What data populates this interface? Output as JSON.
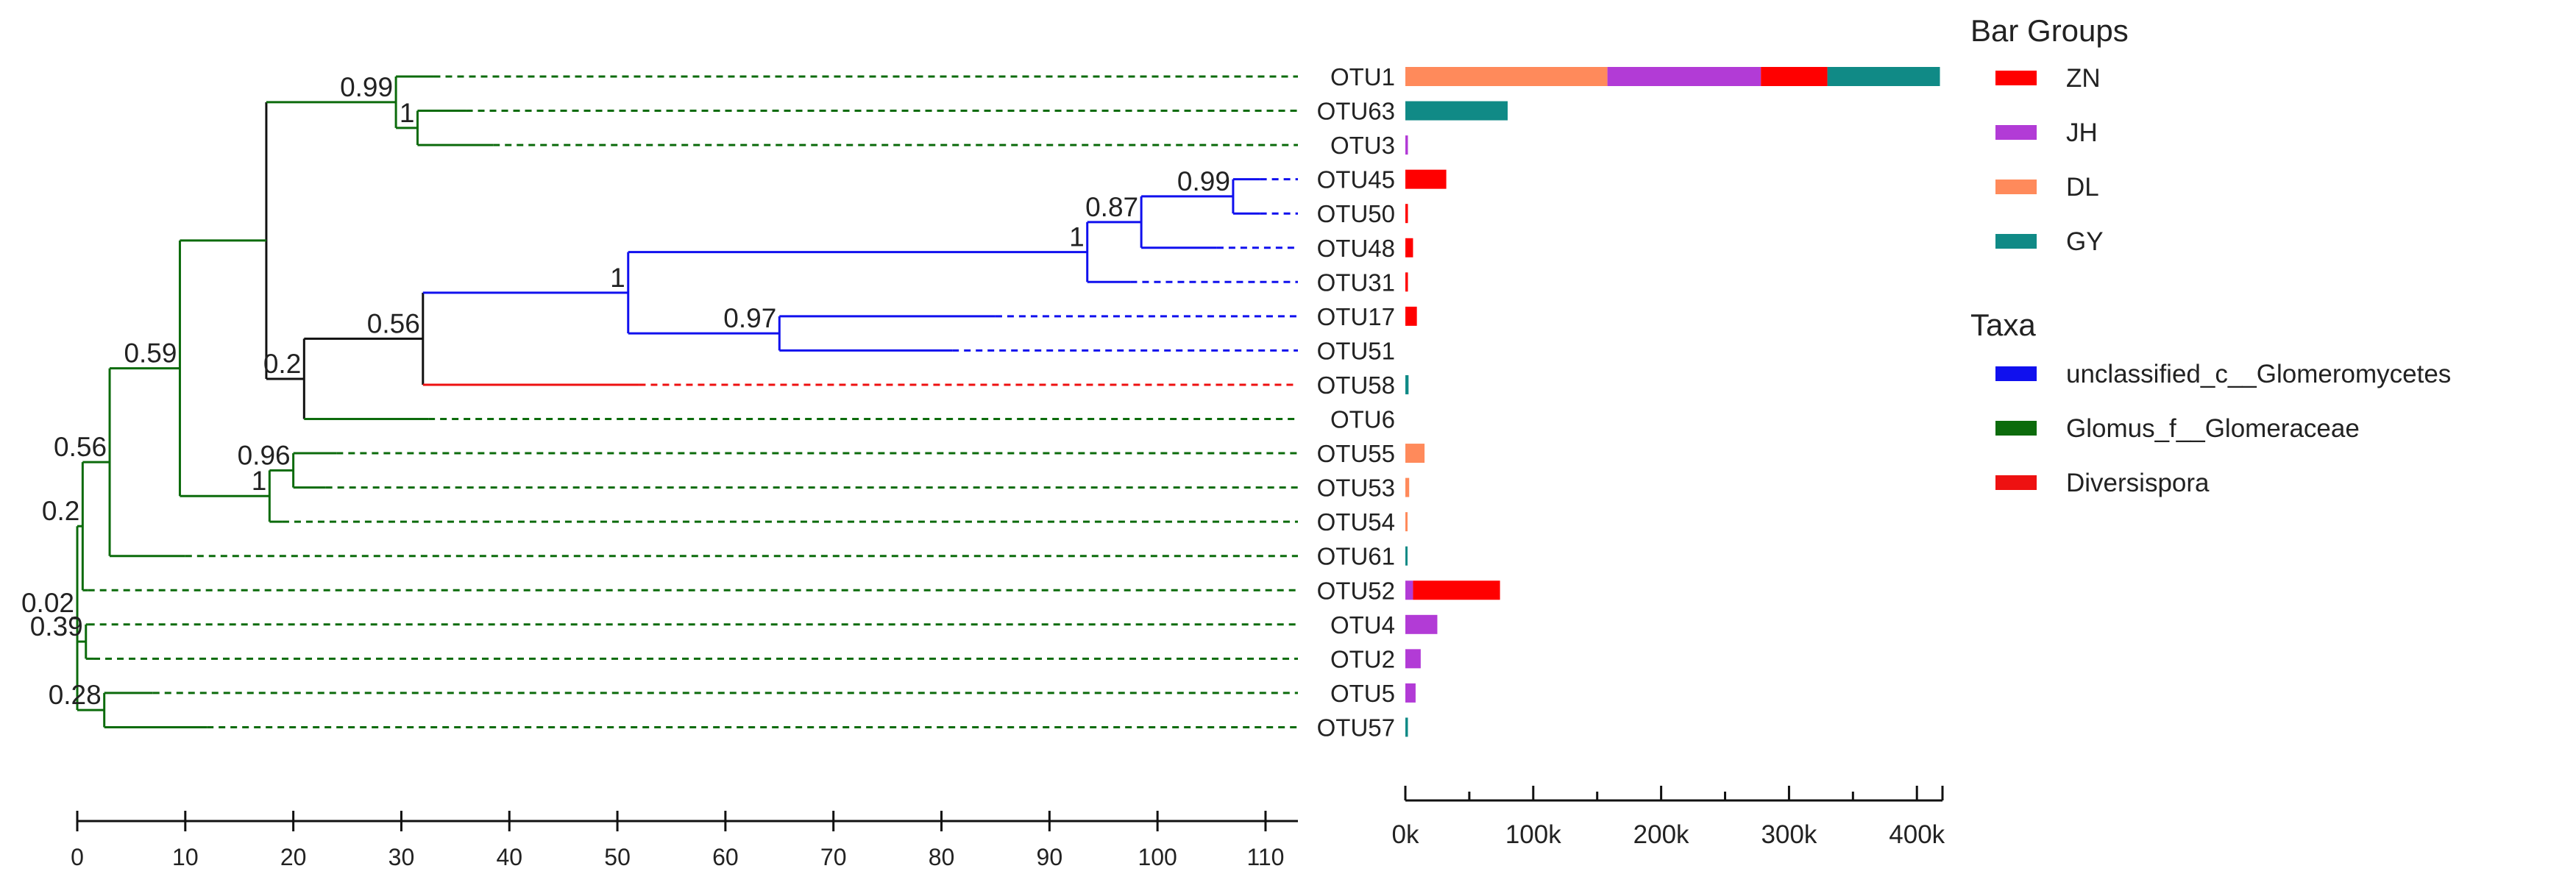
{
  "chart_data": {
    "type": "bar",
    "categories": [
      "OTU1",
      "OTU63",
      "OTU3",
      "OTU45",
      "OTU50",
      "OTU48",
      "OTU31",
      "OTU17",
      "OTU51",
      "OTU58",
      "OTU6",
      "OTU55",
      "OTU53",
      "OTU54",
      "OTU61",
      "OTU52",
      "OTU4",
      "OTU2",
      "OTU5",
      "OTU57"
    ],
    "series": [
      {
        "name": "ZN",
        "color": "#ff0000",
        "values": [
          52000,
          0,
          0,
          32000,
          2000,
          6000,
          2000,
          9000,
          0,
          0,
          0,
          0,
          0,
          0,
          0,
          68000,
          0,
          0,
          0,
          0
        ]
      },
      {
        "name": "JH",
        "color": "#b23bd6",
        "values": [
          120000,
          0,
          2000,
          0,
          0,
          0,
          0,
          0,
          0,
          0,
          0,
          0,
          0,
          0,
          0,
          6000,
          25000,
          12000,
          8000,
          0
        ]
      },
      {
        "name": "DL",
        "color": "#ff8a5b",
        "values": [
          158000,
          0,
          0,
          0,
          0,
          0,
          0,
          0,
          0,
          0,
          0,
          15000,
          3000,
          1500,
          0,
          0,
          0,
          0,
          0,
          0
        ]
      },
      {
        "name": "GY",
        "color": "#108a86",
        "values": [
          88000,
          80000,
          0,
          0,
          0,
          0,
          0,
          0,
          0,
          2500,
          0,
          0,
          0,
          0,
          1500,
          0,
          0,
          0,
          0,
          2000
        ]
      }
    ],
    "stack_order": [
      "DL",
      "JH",
      "ZN",
      "GY"
    ],
    "bar_axis": {
      "range": [
        0,
        420000
      ],
      "ticks": [
        "0k",
        "100k",
        "200k",
        "300k",
        "400k"
      ],
      "tick_values": [
        0,
        100000,
        200000,
        300000,
        400000
      ]
    },
    "tree": {
      "type": "phylogenetic-tree",
      "axis": {
        "range": [
          0,
          113
        ],
        "ticks": [
          "0",
          "10",
          "20",
          "30",
          "40",
          "50",
          "60",
          "70",
          "80",
          "90",
          "100",
          "110"
        ],
        "tick_values": [
          0,
          10,
          20,
          30,
          40,
          50,
          60,
          70,
          80,
          90,
          100,
          110
        ]
      },
      "node_heights": {
        "N_root": 0,
        "N_u1": 0.5,
        "N_sub2": 3,
        "N_top": 9.5,
        "N_a": 17.5,
        "N_b": 21,
        "N_c": 32,
        "N_d": 51,
        "N_e": 93.5,
        "N_f": 98.5,
        "N_g": 107,
        "N_h": 65,
        "N_i": 29.5,
        "N_j": 31.5,
        "N_k": 17.8,
        "N_l": 20,
        "N_u2": 0.8,
        "N_u3": 2.5,
        "OTU1": 113,
        "OTU63": 113,
        "OTU3": 113,
        "OTU45": 113,
        "OTU50": 113,
        "OTU48": 113,
        "OTU31": 113,
        "OTU17": 113,
        "OTU51": 113,
        "OTU58": 113,
        "OTU6": 113,
        "OTU55": 113,
        "OTU53": 113,
        "OTU54": 113,
        "OTU61": 113,
        "OTU52": 113,
        "OTU4": 113,
        "OTU2": 113,
        "OTU5": 113,
        "OTU57": 113
      },
      "solid_ends": {
        "OTU1": 33,
        "OTU63": 36,
        "OTU3": 38.5,
        "OTU45": 109.5,
        "OTU50": 109.5,
        "OTU48": 105.5,
        "OTU31": 97.5,
        "OTU17": 85,
        "OTU51": 81,
        "OTU58": 52,
        "OTU6": 32.5,
        "OTU55": 24,
        "OTU53": 23,
        "OTU54": 19,
        "OTU61": 10,
        "OTU52": 1,
        "OTU4": 1,
        "OTU2": 1.5,
        "OTU5": 7,
        "OTU57": 12
      },
      "edges": [
        {
          "from": "N_root",
          "to": "N_u1",
          "taxon": "Glomus_f__Glomeraceae"
        },
        {
          "from": "N_u1",
          "to": "N_sub2",
          "taxon": "Glomus_f__Glomeraceae"
        },
        {
          "from": "N_sub2",
          "to": "N_top",
          "taxon": "Glomus_f__Glomeraceae"
        },
        {
          "from": "N_top",
          "to": "N_a",
          "taxon": "Glomus_f__Glomeraceae"
        },
        {
          "from": "N_a",
          "to": "N_i",
          "taxon": "Glomus_f__Glomeraceae"
        },
        {
          "from": "N_i",
          "to": "OTU1",
          "taxon": "Glomus_f__Glomeraceae"
        },
        {
          "from": "N_i",
          "to": "N_j",
          "taxon": "Glomus_f__Glomeraceae"
        },
        {
          "from": "N_j",
          "to": "OTU63",
          "taxon": "Glomus_f__Glomeraceae"
        },
        {
          "from": "N_j",
          "to": "OTU3",
          "taxon": "Glomus_f__Glomeraceae"
        },
        {
          "from": "N_a",
          "to": "N_b",
          "taxon": ""
        },
        {
          "from": "N_b",
          "to": "N_c",
          "taxon": ""
        },
        {
          "from": "N_c",
          "to": "N_d",
          "taxon": "unclassified_c__Glomeromycetes"
        },
        {
          "from": "N_d",
          "to": "N_e",
          "taxon": "unclassified_c__Glomeromycetes"
        },
        {
          "from": "N_e",
          "to": "N_f",
          "taxon": "unclassified_c__Glomeromycetes"
        },
        {
          "from": "N_f",
          "to": "N_g",
          "taxon": "unclassified_c__Glomeromycetes"
        },
        {
          "from": "N_g",
          "to": "OTU45",
          "taxon": "unclassified_c__Glomeromycetes"
        },
        {
          "from": "N_g",
          "to": "OTU50",
          "taxon": "unclassified_c__Glomeromycetes"
        },
        {
          "from": "N_f",
          "to": "OTU48",
          "taxon": "unclassified_c__Glomeromycetes"
        },
        {
          "from": "N_e",
          "to": "OTU31",
          "taxon": "unclassified_c__Glomeromycetes"
        },
        {
          "from": "N_d",
          "to": "N_h",
          "taxon": "unclassified_c__Glomeromycetes"
        },
        {
          "from": "N_h",
          "to": "OTU17",
          "taxon": "unclassified_c__Glomeromycetes"
        },
        {
          "from": "N_h",
          "to": "OTU51",
          "taxon": "unclassified_c__Glomeromycetes"
        },
        {
          "from": "N_c",
          "to": "OTU58",
          "taxon": "Diversispora"
        },
        {
          "from": "N_b",
          "to": "OTU6",
          "taxon": "Glomus_f__Glomeraceae"
        },
        {
          "from": "N_top",
          "to": "N_k",
          "taxon": "Glomus_f__Glomeraceae"
        },
        {
          "from": "N_k",
          "to": "N_l",
          "taxon": "Glomus_f__Glomeraceae"
        },
        {
          "from": "N_l",
          "to": "OTU55",
          "taxon": "Glomus_f__Glomeraceae"
        },
        {
          "from": "N_l",
          "to": "OTU53",
          "taxon": "Glomus_f__Glomeraceae"
        },
        {
          "from": "N_k",
          "to": "OTU54",
          "taxon": "Glomus_f__Glomeraceae"
        },
        {
          "from": "N_sub2",
          "to": "OTU61",
          "taxon": "Glomus_f__Glomeraceae"
        },
        {
          "from": "N_u1",
          "to": "OTU52",
          "taxon": "Glomus_f__Glomeraceae"
        },
        {
          "from": "N_root",
          "to": "N_u2",
          "taxon": "Glomus_f__Glomeraceae"
        },
        {
          "from": "N_u2",
          "to": "OTU4",
          "taxon": "Glomus_f__Glomeraceae"
        },
        {
          "from": "N_u2",
          "to": "OTU2",
          "taxon": "Glomus_f__Glomeraceae"
        },
        {
          "from": "N_root",
          "to": "N_u3",
          "taxon": "Glomus_f__Glomeraceae"
        },
        {
          "from": "N_u3",
          "to": "OTU5",
          "taxon": "Glomus_f__Glomeraceae"
        },
        {
          "from": "N_u3",
          "to": "OTU57",
          "taxon": "Glomus_f__Glomeraceae"
        }
      ],
      "support_labels": [
        {
          "node": "N_i",
          "text": "0.99"
        },
        {
          "node": "N_j",
          "text": "1"
        },
        {
          "node": "N_top",
          "text": "0.59"
        },
        {
          "node": "N_g",
          "text": "0.99"
        },
        {
          "node": "N_f",
          "text": "0.87"
        },
        {
          "node": "N_e",
          "text": "1"
        },
        {
          "node": "N_d",
          "text": "1"
        },
        {
          "node": "N_h",
          "text": "0.97"
        },
        {
          "node": "N_c",
          "text": "0.56"
        },
        {
          "node": "N_b",
          "text": "0.2"
        },
        {
          "node": "N_sub2",
          "text": "0.56"
        },
        {
          "node": "N_u1",
          "text": "0.2"
        },
        {
          "node": "N_l",
          "text": "0.96"
        },
        {
          "node": "N_k",
          "text": "1"
        },
        {
          "node": "N_root",
          "text": "0.02"
        },
        {
          "node": "N_u2",
          "text": "0.39"
        },
        {
          "node": "N_u3",
          "text": "0.28"
        }
      ]
    },
    "taxa": [
      {
        "name": "unclassified_c__Glomeromycetes",
        "color": "#1010ee"
      },
      {
        "name": "Glomus_f__Glomeraceae",
        "color": "#0c6b0c"
      },
      {
        "name": "Diversispora",
        "color": "#ee1111"
      }
    ],
    "legend": {
      "bar_groups_title": "Bar Groups",
      "bar_groups": [
        {
          "name": "ZN",
          "color": "#ff0000"
        },
        {
          "name": "JH",
          "color": "#b23bd6"
        },
        {
          "name": "DL",
          "color": "#ff8a5b"
        },
        {
          "name": "GY",
          "color": "#108a86"
        }
      ],
      "taxa_title": "Taxa",
      "position": "right"
    }
  }
}
